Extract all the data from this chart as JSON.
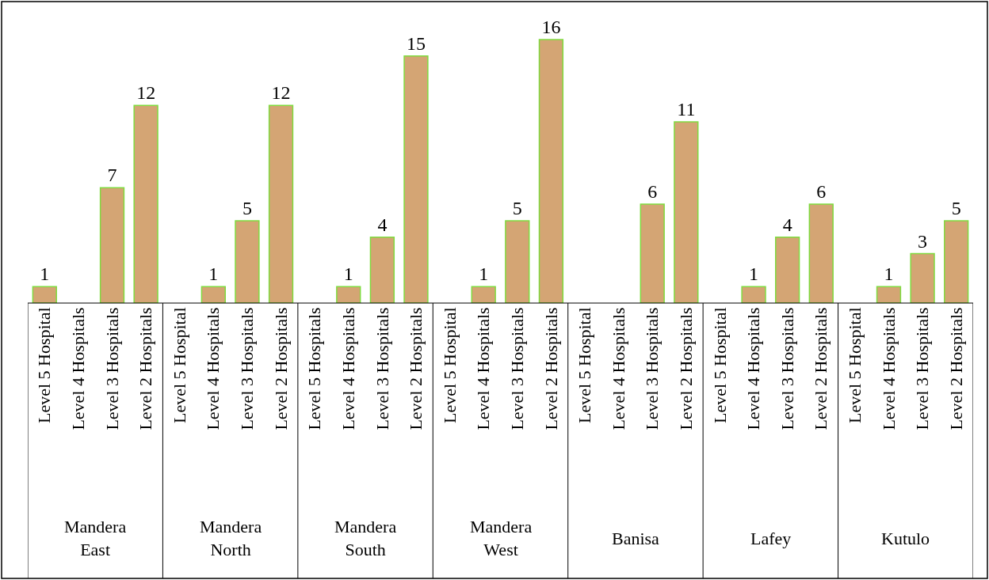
{
  "chart_data": {
    "type": "bar",
    "categories": [
      "Level 5 Hospital",
      "Level 4 Hospitals",
      "Level 3 Hospitals",
      "Level 2 Hospitals",
      "Level 5 Hospital",
      "Level 4 Hospitals",
      "Level 3 Hospitals",
      "Level 2 Hospitals",
      "Level 5 Hospitals",
      "Level 4 Hospitals",
      "Level 3 Hospitals",
      "Level 2 Hospitals",
      "Level 5 Hospital",
      "Level 4 Hospitals",
      "Level 3 Hospitals",
      "Level 2 Hospitals",
      "Level 5 Hospital",
      "Level 4 Hospitals",
      "Level 3 Hospitals",
      "Level 2 Hospitals",
      "Level 5 Hospital",
      "Level 4 Hospitals",
      "Level 3 Hospitals",
      "Level 2 Hospitals",
      "Level 5 Hospital",
      "Level 4 Hospitals",
      "Level 3 Hospitals",
      "Level 2 Hospitals"
    ],
    "values": [
      1,
      null,
      7,
      12,
      null,
      1,
      5,
      12,
      null,
      1,
      4,
      15,
      null,
      1,
      5,
      16,
      null,
      null,
      6,
      11,
      null,
      1,
      4,
      6,
      null,
      1,
      3,
      5
    ],
    "color": "#d4a574",
    "data_labels": true,
    "annotations": [
      "Mandera East",
      "Mandera North",
      "Mandera South",
      "Mandera West",
      "Banisa",
      "Lafey",
      "Kutulo"
    ]
  }
}
